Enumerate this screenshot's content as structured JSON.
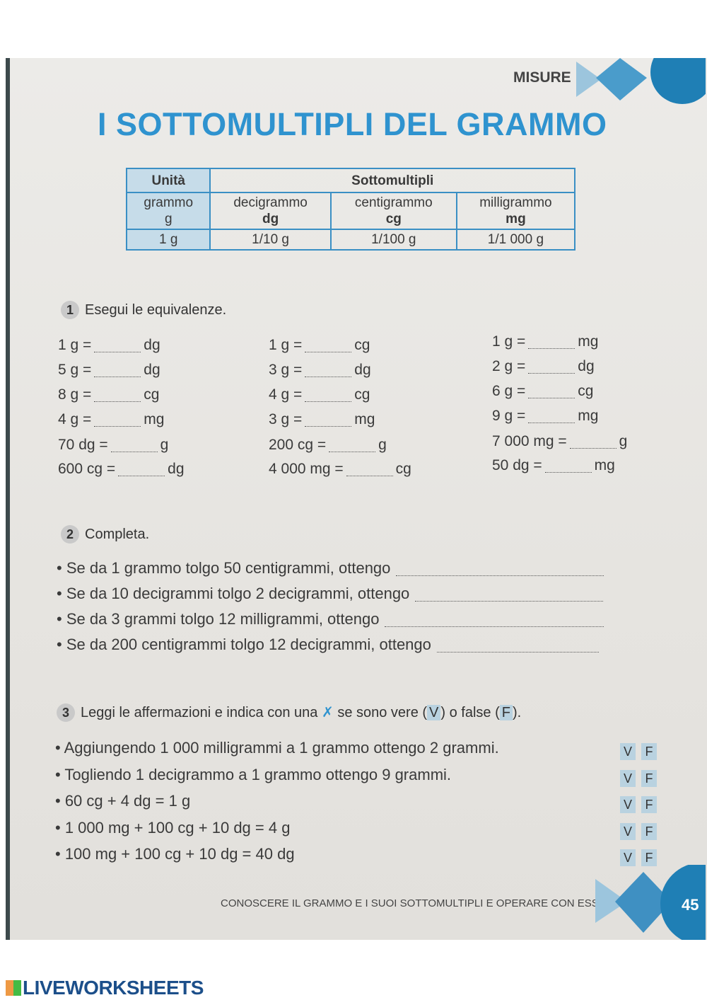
{
  "header": {
    "section": "MISURE",
    "title": "I SOTTOMULTIPLI DEL GRAMMO",
    "accent": "#2f93cf"
  },
  "table": {
    "head": [
      "Unità",
      "Sottomultipli"
    ],
    "units": [
      {
        "name": "grammo",
        "sym": "g",
        "value": "1 g"
      },
      {
        "name": "decigrammo",
        "sym": "dg",
        "value": "1/10 g"
      },
      {
        "name": "centigrammo",
        "sym": "cg",
        "value": "1/100 g"
      },
      {
        "name": "milligrammo",
        "sym": "mg",
        "value": "1/1 000 g"
      }
    ]
  },
  "ex1": {
    "num": "1",
    "title": "Esegui le equivalenze.",
    "cols": [
      [
        [
          "1 g =",
          "dg"
        ],
        [
          "5 g =",
          "dg"
        ],
        [
          "8 g =",
          "cg"
        ],
        [
          "4 g =",
          "mg"
        ],
        [
          "70 dg =",
          "g"
        ],
        [
          "600 cg =",
          "dg"
        ]
      ],
      [
        [
          "1 g =",
          "cg"
        ],
        [
          "3 g =",
          "dg"
        ],
        [
          "4 g =",
          "cg"
        ],
        [
          "3 g =",
          "mg"
        ],
        [
          "200 cg =",
          "g"
        ],
        [
          "4 000 mg =",
          "cg"
        ]
      ],
      [
        [
          "1 g =",
          "mg"
        ],
        [
          "2 g =",
          "dg"
        ],
        [
          "6 g =",
          "cg"
        ],
        [
          "9 g =",
          "mg"
        ],
        [
          "7 000 mg =",
          "g"
        ],
        [
          "50 dg =",
          "mg"
        ]
      ]
    ]
  },
  "ex2": {
    "num": "2",
    "title": "Completa.",
    "items": [
      "• Se da 1 grammo tolgo 50 centigrammi, ottengo",
      "• Se da 10 decigrammi tolgo 2 decigrammi, ottengo",
      "• Se da 3 grammi tolgo 12 milligrammi, ottengo",
      "• Se da 200 centigrammi tolgo 12 decigrammi, ottengo"
    ]
  },
  "ex3": {
    "num": "3",
    "title_a": "Leggi le affermazioni e indica con una",
    "x": "✗",
    "title_b": "se sono vere (",
    "v": "V",
    "title_c": ") o false (",
    "f": "F",
    "title_d": ").",
    "items": [
      "• Aggiungendo 1 000 milligrammi a 1 grammo ottengo 2 grammi.",
      "• Togliendo 1 decigrammo a 1 grammo ottengo 9 grammi.",
      "• 60 cg + 4 dg = 1 g",
      "• 1 000 mg + 100 cg + 10 dg = 4 g",
      "• 100 mg + 100 cg + 10 dg = 40 dg"
    ]
  },
  "footer": {
    "text": "CONOSCERE IL GRAMMO E I SUOI SOTTOMULTIPLI E OPERARE CON ESSI",
    "page": "45"
  },
  "brand": {
    "logo": "LIVEWORKSHEETS"
  }
}
